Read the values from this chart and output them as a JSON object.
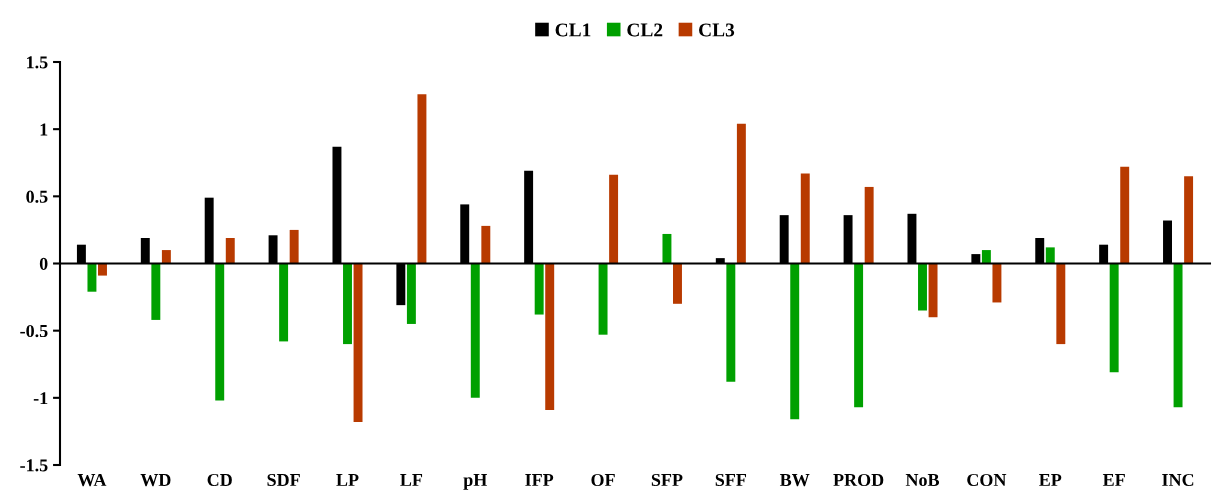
{
  "chart_data": {
    "type": "bar",
    "categories": [
      "WA",
      "WD",
      "CD",
      "SDF",
      "LP",
      "LF",
      "pH",
      "IFP",
      "OF",
      "SFP",
      "SFF",
      "BW",
      "PROD",
      "NoB",
      "CON",
      "EP",
      "EF",
      "INC"
    ],
    "series": [
      {
        "name": "CL1",
        "color": "#000000",
        "values": [
          0.14,
          0.19,
          0.49,
          0.21,
          0.87,
          -0.31,
          0.44,
          0.69,
          0,
          0,
          0.04,
          0.36,
          0.36,
          0.37,
          0.07,
          0.19,
          0.14,
          0.32
        ]
      },
      {
        "name": "CL2",
        "color": "#00a000",
        "values": [
          -0.21,
          -0.42,
          -1.02,
          -0.58,
          -0.6,
          -0.45,
          -1.0,
          -0.38,
          -0.53,
          0.22,
          -0.88,
          -1.16,
          -1.07,
          -0.35,
          0.1,
          0.12,
          -0.81,
          -1.07
        ]
      },
      {
        "name": "CL3",
        "color": "#b83a00",
        "values": [
          -0.09,
          0.1,
          0.19,
          0.25,
          -1.18,
          1.26,
          0.28,
          -1.09,
          0.66,
          -0.3,
          1.04,
          0.67,
          0.57,
          -0.4,
          -0.29,
          -0.6,
          0.72,
          0.65
        ]
      }
    ],
    "ylim": [
      -1.5,
      1.5
    ],
    "yticks": [
      -1.5,
      -1,
      -0.5,
      0,
      0.5,
      1,
      1.5
    ],
    "legend": "top"
  }
}
